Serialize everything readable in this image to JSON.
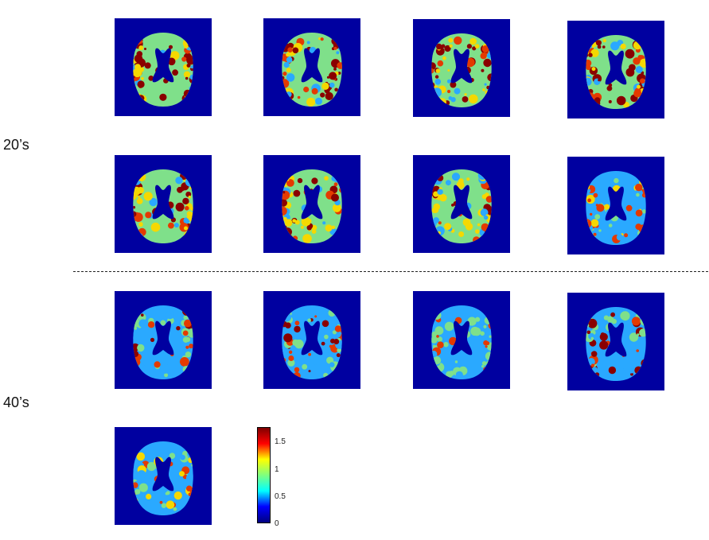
{
  "groups": [
    {
      "label": "20’s"
    },
    {
      "label": "40’s"
    }
  ],
  "colorbar": {
    "ticks": [
      "1.5",
      "1",
      "0.5",
      "0"
    ],
    "stops": [
      "#00007f",
      "#0000ff",
      "#00ffff",
      "#7fff7f",
      "#ffff00",
      "#ff0000",
      "#7f0000"
    ]
  },
  "colors": {
    "background": "#0000a0",
    "cold": "#2aa9ff",
    "mid": "#7fe08a",
    "warm": "#f5d800",
    "hot": "#e43a00",
    "max": "#8a0000"
  }
}
